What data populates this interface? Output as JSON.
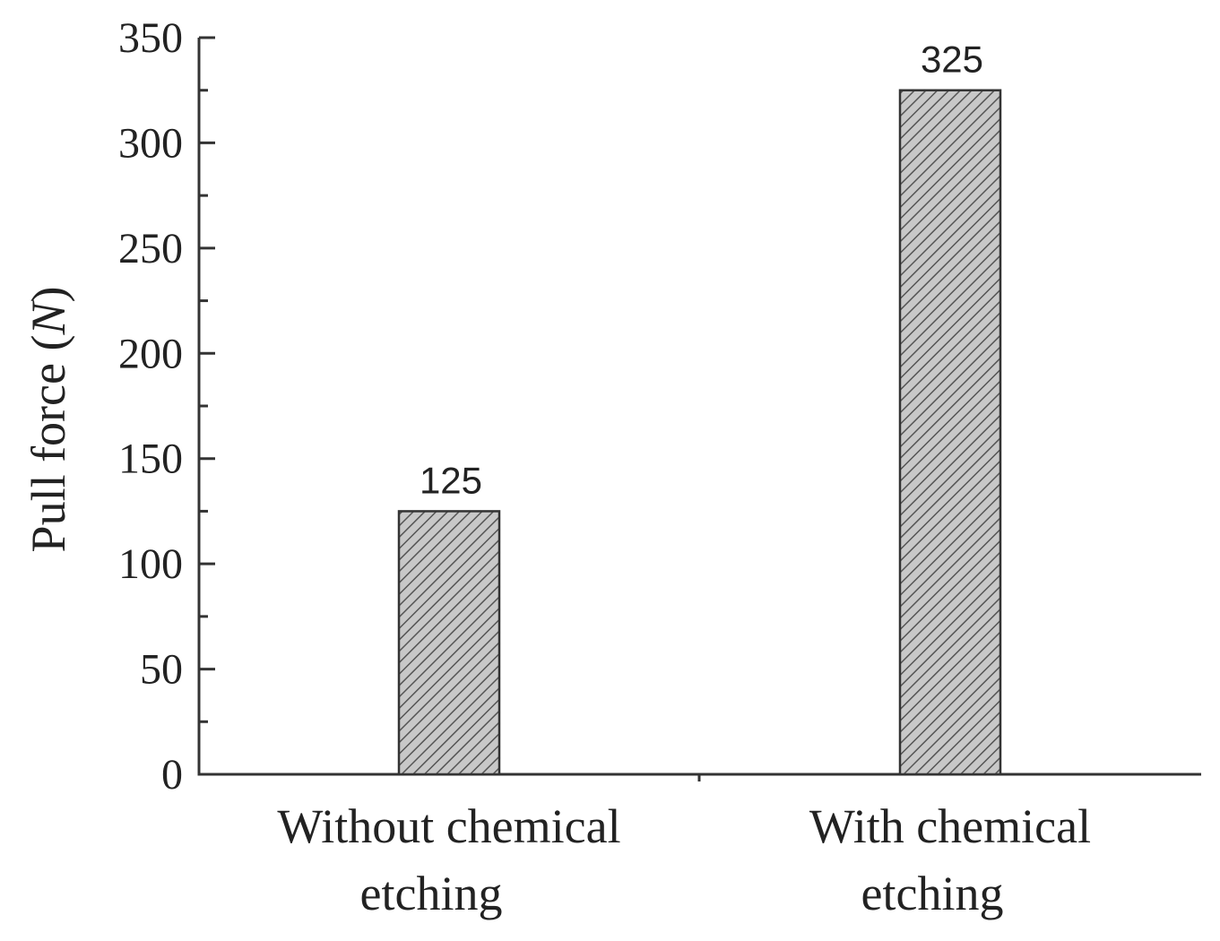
{
  "chart_data": {
    "type": "bar",
    "title": "",
    "xlabel": "",
    "ylabel": "Pull force",
    "ylabel_unit": "N",
    "categories": [
      [
        "Without chemical",
        "etching"
      ],
      [
        "With chemical",
        "etching"
      ]
    ],
    "values": [
      125,
      325
    ],
    "data_labels": [
      "125",
      "325"
    ],
    "ylim": [
      0,
      350
    ],
    "yticks": [
      0,
      50,
      100,
      150,
      200,
      250,
      300,
      350
    ],
    "ytick_labels": [
      "0",
      "50",
      "100",
      "150",
      "200",
      "250",
      "300",
      "350"
    ],
    "y_minor_step": 25,
    "grid": false,
    "legend": "none",
    "bar_fill": "hatched",
    "colors": {
      "bar_fill": "#c8c8c8",
      "hatch": "#555555",
      "axis": "#333333"
    }
  }
}
